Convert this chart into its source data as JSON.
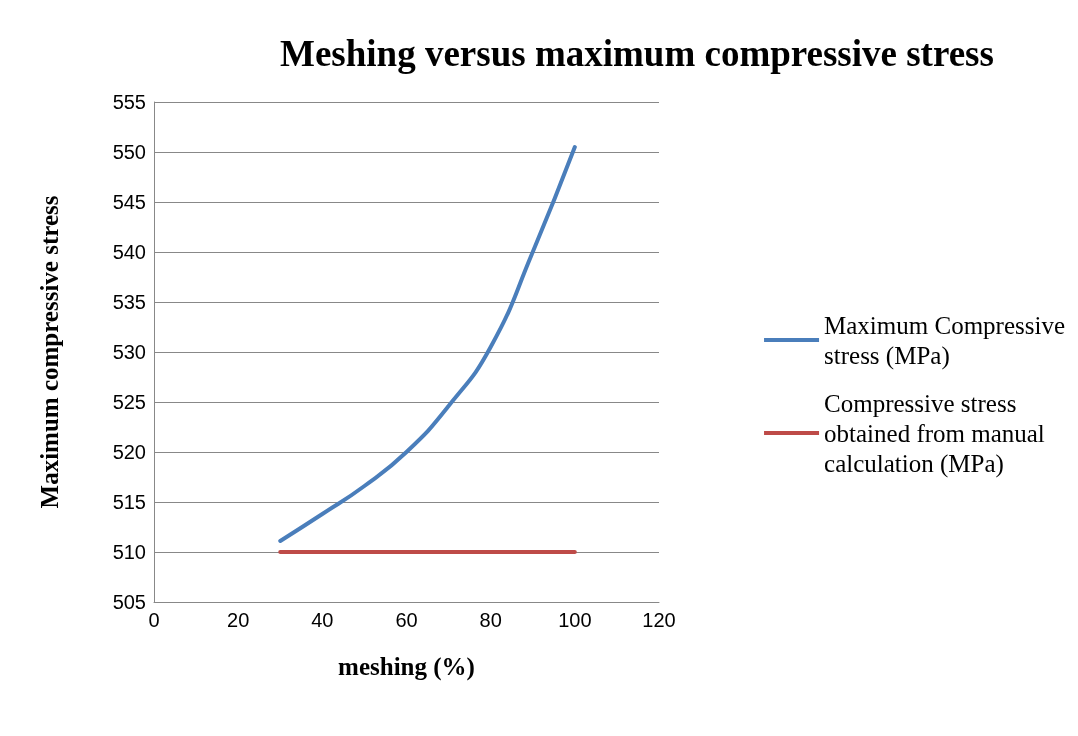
{
  "chart_data": {
    "type": "line",
    "title": "Meshing versus maximum compressive stress",
    "xlabel": "meshing (%)",
    "ylabel": "Maximum compressive stress",
    "xlim": [
      0,
      120
    ],
    "xticks": [
      0,
      20,
      40,
      60,
      80,
      100,
      120
    ],
    "ylim": [
      505,
      555
    ],
    "yticks": [
      505,
      510,
      515,
      520,
      525,
      530,
      535,
      540,
      545,
      550,
      555
    ],
    "grid": "y",
    "legend": "right",
    "marker": "none",
    "line_style": "solid",
    "series": [
      {
        "name": "Maximum Compressive stress (MPa)",
        "color": "#4a7ebb",
        "x": [
          30,
          40,
          50,
          60,
          70,
          80,
          90,
          100
        ],
        "values": [
          511.1,
          513.8,
          516.6,
          520,
          524.6,
          530.5,
          540,
          550.5
        ]
      },
      {
        "name": "Compressive stress obtained from manual calculation (MPa)",
        "color": "#be4b48",
        "x": [
          30,
          100
        ],
        "values": [
          510,
          510
        ]
      }
    ]
  }
}
